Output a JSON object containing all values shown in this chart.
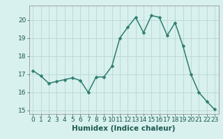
{
  "x": [
    0,
    1,
    2,
    3,
    4,
    5,
    6,
    7,
    8,
    9,
    10,
    11,
    12,
    13,
    14,
    15,
    16,
    17,
    18,
    19,
    20,
    21,
    22,
    23
  ],
  "y": [
    17.2,
    16.9,
    16.5,
    16.6,
    16.7,
    16.8,
    16.65,
    16.0,
    16.85,
    16.85,
    17.45,
    19.0,
    19.6,
    20.15,
    19.3,
    20.25,
    20.15,
    19.15,
    19.85,
    18.55,
    17.0,
    16.0,
    15.5,
    15.05
  ],
  "line_color": "#2d7d6e",
  "marker_color": "#2d7d6e",
  "bg_color": "#d8f0ee",
  "grid_color": "#b8d8d4",
  "xlabel": "Humidex (Indice chaleur)",
  "ylim": [
    14.8,
    20.8
  ],
  "yticks": [
    15,
    16,
    17,
    18,
    19,
    20
  ],
  "xlim": [
    -0.5,
    23.5
  ],
  "xticks": [
    0,
    1,
    2,
    3,
    4,
    5,
    6,
    7,
    8,
    9,
    10,
    11,
    12,
    13,
    14,
    15,
    16,
    17,
    18,
    19,
    20,
    21,
    22,
    23
  ],
  "tick_fontsize": 6.5,
  "xlabel_fontsize": 7.5,
  "linewidth": 1.1,
  "markersize": 2.5
}
